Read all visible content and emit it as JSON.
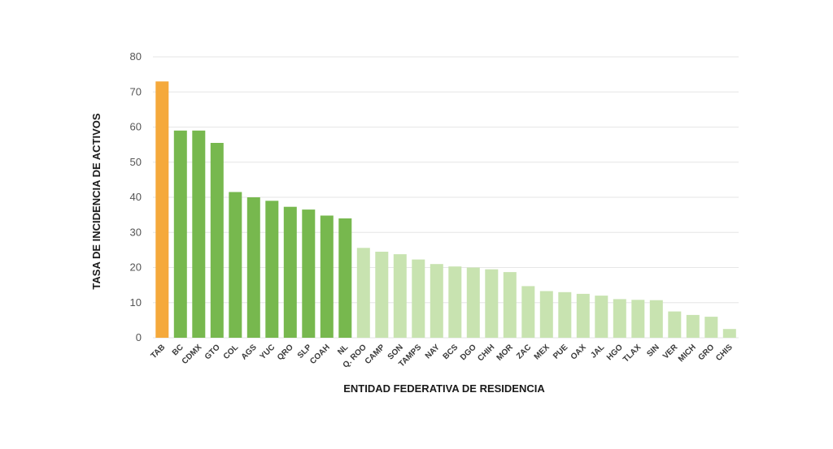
{
  "chart_data": {
    "type": "bar",
    "title": "",
    "xlabel": "ENTIDAD FEDERATIVA DE RESIDENCIA",
    "ylabel": "TASA DE INCIDENCIA DE ACTIVOS",
    "ylim": [
      0,
      80
    ],
    "yticks": [
      "0",
      "10",
      "20",
      "30",
      "40",
      "50",
      "60",
      "70",
      "80"
    ],
    "grid": true,
    "categories": [
      "TAB",
      "BC",
      "CDMX",
      "GTO",
      "COL",
      "AGS",
      "YUC",
      "QRO",
      "SLP",
      "COAH",
      "NL",
      "Q. ROO",
      "CAMP",
      "SON",
      "TAMPS",
      "NAY",
      "BCS",
      "DGO",
      "CHIH",
      "MOR",
      "ZAC",
      "MEX",
      "PUE",
      "OAX",
      "JAL",
      "HGO",
      "TLAX",
      "SIN",
      "VER",
      "MICH",
      "GRO",
      "CHIS"
    ],
    "values": [
      73,
      59,
      59,
      55.5,
      41.5,
      40,
      39,
      37.3,
      36.5,
      34.8,
      34,
      25.6,
      24.5,
      23.8,
      22.3,
      21,
      20.3,
      20,
      19.5,
      18.7,
      14.7,
      13.3,
      13,
      12.5,
      12,
      11,
      10.8,
      10.7,
      7.5,
      6.5,
      6,
      2.5
    ],
    "colors": {
      "highlight": "#F5A93B",
      "high": "#77B84E",
      "low": "#C8E3B0"
    },
    "color_groups": [
      "highlight",
      "high",
      "high",
      "high",
      "high",
      "high",
      "high",
      "high",
      "high",
      "high",
      "high",
      "low",
      "low",
      "low",
      "low",
      "low",
      "low",
      "low",
      "low",
      "low",
      "low",
      "low",
      "low",
      "low",
      "low",
      "low",
      "low",
      "low",
      "low",
      "low",
      "low",
      "low"
    ]
  }
}
